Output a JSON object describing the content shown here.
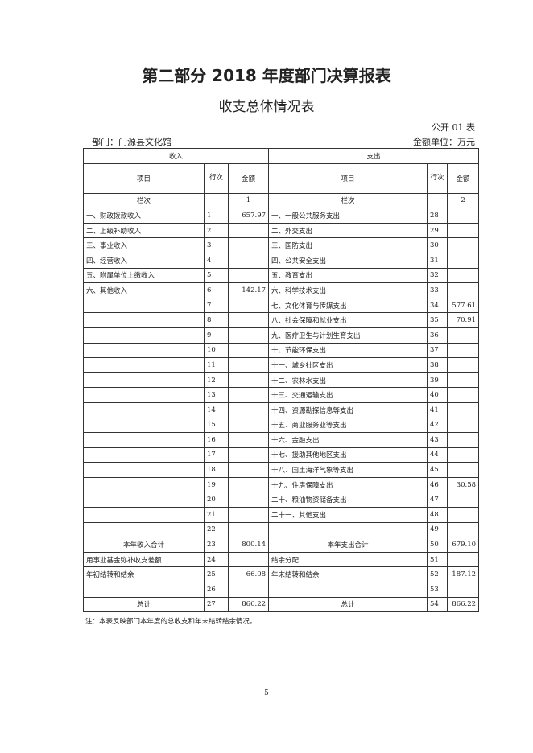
{
  "title": "第二部分  2018 年度部门决算报表",
  "subtitle": "收支总体情况表",
  "table_code": "公开 01 表",
  "department": "部门：门源县文化馆",
  "unit": "金额单位：万元",
  "header": {
    "income": "收入",
    "expense": "支出",
    "item": "项目",
    "line": "行次",
    "amount": "金额",
    "column_label": "栏次",
    "col1": "1",
    "col2": "2"
  },
  "rows": [
    [
      "一、财政拨款收入",
      "1",
      "657.97",
      "一、一般公共服务支出",
      "28",
      ""
    ],
    [
      "二、上级补助收入",
      "2",
      "",
      "二、外交支出",
      "29",
      ""
    ],
    [
      "三、事业收入",
      "3",
      "",
      "三、国防支出",
      "30",
      ""
    ],
    [
      "四、经营收入",
      "4",
      "",
      "四、公共安全支出",
      "31",
      ""
    ],
    [
      "五、附属单位上缴收入",
      "5",
      "",
      "五、教育支出",
      "32",
      ""
    ],
    [
      "六、其他收入",
      "6",
      "142.17",
      "六、科学技术支出",
      "33",
      ""
    ],
    [
      "",
      "7",
      "",
      "七、文化体育与传媒支出",
      "34",
      "577.61"
    ],
    [
      "",
      "8",
      "",
      "八、社会保障和就业支出",
      "35",
      "70.91"
    ],
    [
      "",
      "9",
      "",
      "九、医疗卫生与计划生育支出",
      "36",
      ""
    ],
    [
      "",
      "10",
      "",
      "十、节能环保支出",
      "37",
      ""
    ],
    [
      "",
      "11",
      "",
      "十一、城乡社区支出",
      "38",
      ""
    ],
    [
      "",
      "12",
      "",
      "十二、农林水支出",
      "39",
      ""
    ],
    [
      "",
      "13",
      "",
      "十三、交通运输支出",
      "40",
      ""
    ],
    [
      "",
      "14",
      "",
      "十四、资源勘探信息等支出",
      "41",
      ""
    ],
    [
      "",
      "15",
      "",
      "十五、商业服务业等支出",
      "42",
      ""
    ],
    [
      "",
      "16",
      "",
      "十六、金融支出",
      "43",
      ""
    ],
    [
      "",
      "17",
      "",
      "十七、援助其他地区支出",
      "44",
      ""
    ],
    [
      "",
      "18",
      "",
      "十八、国土海洋气象等支出",
      "45",
      ""
    ],
    [
      "",
      "19",
      "",
      "十九、住房保障支出",
      "46",
      "30.58"
    ],
    [
      "",
      "20",
      "",
      "二十、粮油物资储备支出",
      "47",
      ""
    ],
    [
      "",
      "21",
      "",
      "二十一、其他支出",
      "48",
      ""
    ],
    [
      "",
      "22",
      "",
      "",
      "49",
      ""
    ],
    [
      "本年收入合计",
      "23",
      "800.14",
      "本年支出合计",
      "50",
      "679.10"
    ],
    [
      "用事业基金弥补收支差额",
      "24",
      "",
      "结余分配",
      "51",
      ""
    ],
    [
      "年初结转和结余",
      "25",
      "66.08",
      "年末结转和结余",
      "52",
      "187.12"
    ],
    [
      "",
      "26",
      "",
      "",
      "53",
      ""
    ],
    [
      "总计",
      "27",
      "866.22",
      "总计",
      "54",
      "866.22"
    ]
  ],
  "note": "注：本表反映部门本年度的总收支和年末结转结余情况。",
  "page_number": "5"
}
